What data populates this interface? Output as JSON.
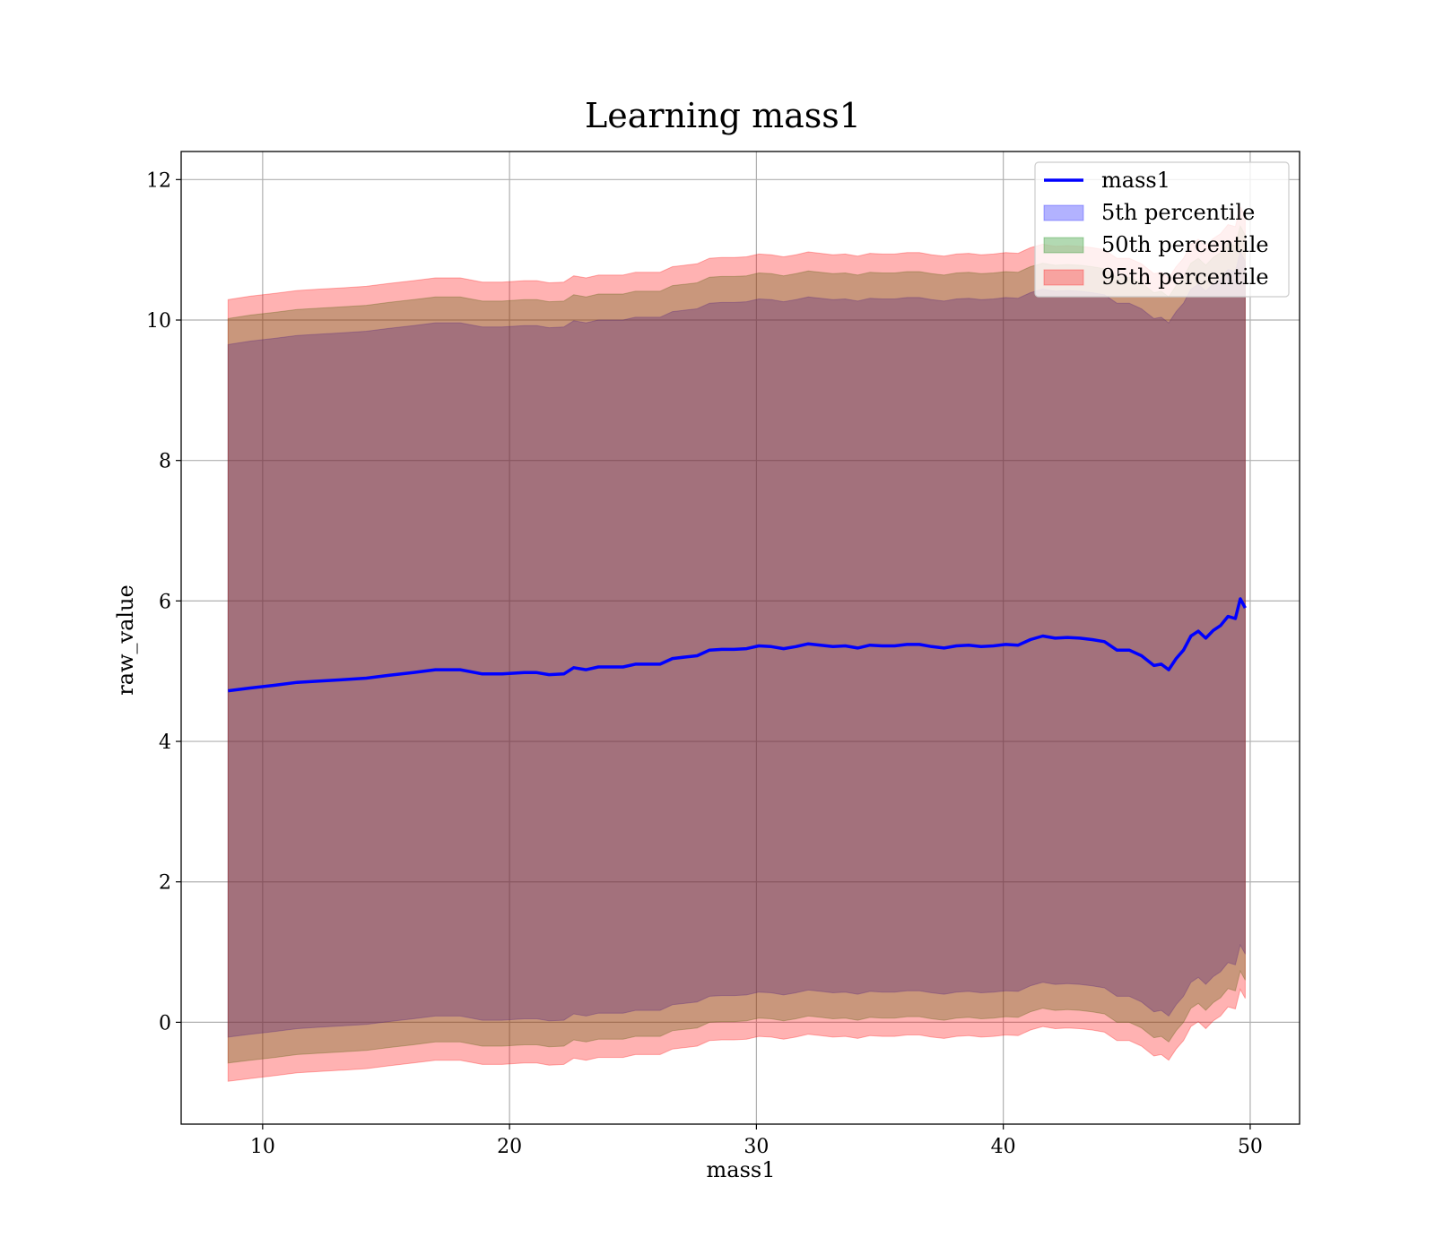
{
  "chart_data": {
    "type": "area",
    "title": "Learning mass1",
    "xlabel": "mass1",
    "ylabel": "raw_value",
    "xlim": [
      6.7,
      52
    ],
    "ylim": [
      -1.45,
      12.4
    ],
    "xticks": [
      10,
      20,
      30,
      40,
      50
    ],
    "yticks": [
      0,
      2,
      4,
      6,
      8,
      10,
      12
    ],
    "grid": true,
    "legend_position": "top-right",
    "x": [
      8.6,
      9.5,
      10.5,
      11.4,
      12.3,
      13.3,
      14.2,
      15.1,
      16.1,
      17.0,
      17.3,
      18.0,
      18.9,
      19.7,
      20.6,
      21.1,
      21.6,
      22.2,
      22.6,
      23.1,
      23.6,
      24.1,
      24.6,
      25.1,
      25.6,
      26.1,
      26.6,
      27.1,
      27.6,
      28.1,
      28.6,
      29.1,
      29.6,
      30.1,
      30.6,
      31.1,
      31.6,
      32.1,
      32.6,
      33.1,
      33.6,
      34.1,
      34.6,
      35.1,
      35.6,
      36.1,
      36.6,
      37.1,
      37.6,
      38.1,
      38.6,
      39.1,
      39.6,
      40.1,
      40.6,
      41.1,
      41.6,
      42.1,
      42.6,
      43.1,
      43.6,
      44.1,
      44.6,
      45.1,
      45.6,
      46.1,
      46.4,
      46.7,
      47.0,
      47.3,
      47.6,
      47.9,
      48.2,
      48.5,
      48.8,
      49.1,
      49.4,
      49.6,
      49.8
    ],
    "series": [
      {
        "name": "mass1",
        "kind": "line",
        "color": "#0000ff",
        "values": [
          4.72,
          4.76,
          4.8,
          4.84,
          4.86,
          4.88,
          4.9,
          4.94,
          4.98,
          5.02,
          5.02,
          5.02,
          4.96,
          4.96,
          4.98,
          4.98,
          4.95,
          4.96,
          5.05,
          5.02,
          5.06,
          5.06,
          5.06,
          5.1,
          5.1,
          5.1,
          5.18,
          5.2,
          5.22,
          5.3,
          5.31,
          5.31,
          5.32,
          5.36,
          5.35,
          5.32,
          5.35,
          5.39,
          5.37,
          5.35,
          5.36,
          5.33,
          5.37,
          5.36,
          5.36,
          5.38,
          5.38,
          5.35,
          5.33,
          5.36,
          5.37,
          5.35,
          5.36,
          5.38,
          5.37,
          5.45,
          5.5,
          5.47,
          5.48,
          5.47,
          5.45,
          5.42,
          5.3,
          5.3,
          5.22,
          5.08,
          5.1,
          5.02,
          5.18,
          5.3,
          5.5,
          5.57,
          5.47,
          5.58,
          5.65,
          5.78,
          5.75,
          6.03,
          5.9
        ]
      },
      {
        "name": "5th percentile",
        "kind": "band",
        "color": "#0000ff",
        "upper": [
          9.65,
          9.7,
          9.74,
          9.78,
          9.8,
          9.82,
          9.84,
          9.88,
          9.92,
          9.96,
          9.96,
          9.96,
          9.9,
          9.9,
          9.92,
          9.92,
          9.89,
          9.9,
          9.99,
          9.96,
          10.0,
          10.0,
          10.0,
          10.04,
          10.04,
          10.04,
          10.12,
          10.14,
          10.16,
          10.24,
          10.25,
          10.25,
          10.26,
          10.3,
          10.29,
          10.26,
          10.29,
          10.33,
          10.31,
          10.29,
          10.3,
          10.27,
          10.31,
          10.3,
          10.3,
          10.32,
          10.32,
          10.29,
          10.27,
          10.3,
          10.31,
          10.29,
          10.3,
          10.32,
          10.31,
          10.39,
          10.44,
          10.41,
          10.42,
          10.41,
          10.39,
          10.36,
          10.24,
          10.24,
          10.16,
          10.02,
          10.04,
          9.96,
          10.12,
          10.24,
          10.44,
          10.51,
          10.41,
          10.52,
          10.59,
          10.72,
          10.69,
          10.97,
          10.84
        ],
        "lower": [
          -0.21,
          -0.17,
          -0.13,
          -0.09,
          -0.07,
          -0.05,
          -0.03,
          0.01,
          0.05,
          0.09,
          0.09,
          0.09,
          0.03,
          0.03,
          0.05,
          0.05,
          0.02,
          0.03,
          0.12,
          0.09,
          0.13,
          0.13,
          0.13,
          0.17,
          0.17,
          0.17,
          0.25,
          0.27,
          0.29,
          0.37,
          0.38,
          0.38,
          0.39,
          0.43,
          0.42,
          0.39,
          0.42,
          0.46,
          0.44,
          0.42,
          0.43,
          0.4,
          0.44,
          0.43,
          0.43,
          0.45,
          0.45,
          0.42,
          0.4,
          0.43,
          0.44,
          0.42,
          0.43,
          0.45,
          0.44,
          0.52,
          0.57,
          0.54,
          0.55,
          0.54,
          0.52,
          0.49,
          0.37,
          0.37,
          0.29,
          0.15,
          0.17,
          0.09,
          0.25,
          0.37,
          0.57,
          0.64,
          0.54,
          0.65,
          0.72,
          0.85,
          0.82,
          1.1,
          0.97
        ]
      },
      {
        "name": "50th percentile",
        "kind": "band",
        "color": "#008000",
        "upper": [
          10.02,
          10.07,
          10.11,
          10.15,
          10.17,
          10.19,
          10.21,
          10.25,
          10.29,
          10.33,
          10.33,
          10.33,
          10.27,
          10.27,
          10.29,
          10.29,
          10.26,
          10.27,
          10.36,
          10.33,
          10.37,
          10.37,
          10.37,
          10.41,
          10.41,
          10.41,
          10.49,
          10.51,
          10.53,
          10.61,
          10.62,
          10.62,
          10.63,
          10.67,
          10.66,
          10.63,
          10.66,
          10.7,
          10.68,
          10.66,
          10.67,
          10.64,
          10.68,
          10.67,
          10.67,
          10.69,
          10.69,
          10.66,
          10.64,
          10.67,
          10.68,
          10.66,
          10.67,
          10.69,
          10.68,
          10.76,
          10.81,
          10.78,
          10.79,
          10.78,
          10.76,
          10.73,
          10.61,
          10.61,
          10.53,
          10.39,
          10.41,
          10.33,
          10.49,
          10.61,
          10.81,
          10.88,
          10.78,
          10.89,
          10.96,
          11.09,
          11.06,
          11.34,
          11.21
        ],
        "lower": [
          -0.58,
          -0.54,
          -0.5,
          -0.46,
          -0.44,
          -0.42,
          -0.4,
          -0.36,
          -0.32,
          -0.28,
          -0.28,
          -0.28,
          -0.34,
          -0.34,
          -0.32,
          -0.32,
          -0.35,
          -0.34,
          -0.25,
          -0.28,
          -0.24,
          -0.24,
          -0.24,
          -0.2,
          -0.2,
          -0.2,
          -0.12,
          -0.1,
          -0.08,
          0.0,
          0.01,
          0.01,
          0.02,
          0.06,
          0.05,
          0.02,
          0.05,
          0.09,
          0.07,
          0.05,
          0.06,
          0.03,
          0.07,
          0.06,
          0.06,
          0.08,
          0.08,
          0.05,
          0.03,
          0.06,
          0.07,
          0.05,
          0.06,
          0.08,
          0.07,
          0.15,
          0.2,
          0.17,
          0.18,
          0.17,
          0.15,
          0.12,
          0.0,
          0.0,
          -0.08,
          -0.22,
          -0.2,
          -0.28,
          -0.12,
          0.0,
          0.2,
          0.27,
          0.17,
          0.28,
          0.35,
          0.48,
          0.45,
          0.73,
          0.6
        ]
      },
      {
        "name": "95th percentile",
        "kind": "band",
        "color": "#ff0000",
        "upper": [
          10.29,
          10.34,
          10.38,
          10.42,
          10.44,
          10.46,
          10.48,
          10.52,
          10.56,
          10.6,
          10.6,
          10.6,
          10.54,
          10.54,
          10.56,
          10.56,
          10.53,
          10.54,
          10.63,
          10.6,
          10.64,
          10.64,
          10.64,
          10.68,
          10.68,
          10.68,
          10.76,
          10.78,
          10.8,
          10.88,
          10.89,
          10.89,
          10.9,
          10.94,
          10.93,
          10.9,
          10.93,
          10.97,
          10.95,
          10.93,
          10.94,
          10.91,
          10.95,
          10.94,
          10.94,
          10.96,
          10.96,
          10.93,
          10.91,
          10.94,
          10.95,
          10.93,
          10.94,
          10.96,
          10.95,
          11.03,
          11.08,
          11.05,
          11.06,
          11.05,
          11.03,
          11.0,
          10.88,
          10.88,
          10.8,
          10.66,
          10.68,
          10.6,
          10.76,
          10.88,
          11.08,
          11.15,
          11.05,
          11.16,
          11.23,
          11.36,
          11.33,
          11.61,
          11.48
        ],
        "lower": [
          -0.84,
          -0.8,
          -0.76,
          -0.72,
          -0.7,
          -0.68,
          -0.66,
          -0.62,
          -0.58,
          -0.54,
          -0.54,
          -0.54,
          -0.6,
          -0.6,
          -0.58,
          -0.58,
          -0.61,
          -0.6,
          -0.51,
          -0.54,
          -0.5,
          -0.5,
          -0.5,
          -0.46,
          -0.46,
          -0.46,
          -0.38,
          -0.36,
          -0.34,
          -0.26,
          -0.25,
          -0.25,
          -0.24,
          -0.2,
          -0.21,
          -0.24,
          -0.21,
          -0.17,
          -0.19,
          -0.21,
          -0.2,
          -0.23,
          -0.19,
          -0.2,
          -0.2,
          -0.18,
          -0.18,
          -0.21,
          -0.23,
          -0.2,
          -0.19,
          -0.21,
          -0.2,
          -0.18,
          -0.19,
          -0.11,
          -0.06,
          -0.09,
          -0.08,
          -0.09,
          -0.11,
          -0.14,
          -0.26,
          -0.26,
          -0.34,
          -0.48,
          -0.46,
          -0.54,
          -0.38,
          -0.26,
          -0.06,
          0.01,
          -0.09,
          0.02,
          0.09,
          0.22,
          0.19,
          0.47,
          0.34
        ]
      }
    ]
  }
}
